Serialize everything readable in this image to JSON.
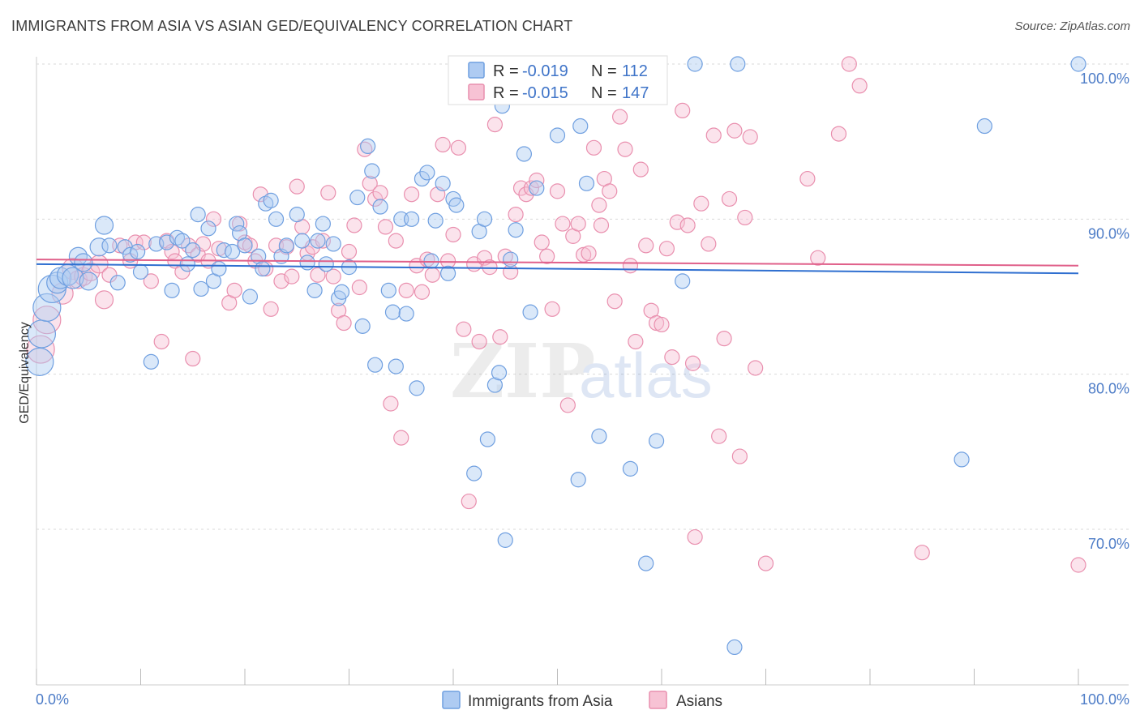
{
  "chart_data": {
    "type": "scatter",
    "title": "IMMIGRANTS FROM ASIA VS ASIAN GED/EQUIVALENCY CORRELATION CHART",
    "source": "Source: ZipAtlas.com",
    "xlabel": "",
    "ylabel": "GED/Equivalency",
    "xlim": [
      0,
      100
    ],
    "ylim": [
      60,
      101.5
    ],
    "x_tick_labels": [
      "0.0%",
      "100.0%"
    ],
    "y_ticks": [
      {
        "value": 100,
        "label": "100.0%"
      },
      {
        "value": 90,
        "label": "90.0%"
      },
      {
        "value": 80,
        "label": "80.0%"
      },
      {
        "value": 70,
        "label": "70.0%"
      }
    ],
    "grid": true,
    "legend_position": "top-center",
    "watermark": "ZIPatlas",
    "colors": {
      "blue_stroke": "#6f9fe0",
      "blue_fill": "#aecbf2",
      "blue_line": "#2f6fd0",
      "pink_stroke": "#e98fae",
      "pink_fill": "#f7c2d4",
      "pink_line": "#e0608a"
    },
    "stats": [
      {
        "r_label": "R =",
        "r_value": "-0.019",
        "n_label": "N =",
        "n_value": "112"
      },
      {
        "r_label": "R =",
        "r_value": "-0.015",
        "n_label": "N =",
        "n_value": "147"
      }
    ],
    "series": [
      {
        "name": "Immigrants from Asia",
        "trend": {
          "start": [
            0,
            87.1
          ],
          "end": [
            100,
            86.5
          ]
        },
        "points": [
          [
            0.3,
            80.8
          ],
          [
            0.5,
            82.6
          ],
          [
            1.0,
            84.3
          ],
          [
            1.5,
            85.5
          ],
          [
            2.0,
            85.9
          ],
          [
            2.3,
            86.2
          ],
          [
            3.0,
            86.4
          ],
          [
            3.5,
            86.2
          ],
          [
            4.0,
            87.6
          ],
          [
            4.5,
            87.2
          ],
          [
            5.0,
            86.0
          ],
          [
            6.0,
            88.2
          ],
          [
            6.5,
            89.6
          ],
          [
            7.0,
            88.3
          ],
          [
            7.8,
            85.9
          ],
          [
            8.5,
            88.2
          ],
          [
            9.0,
            87.7
          ],
          [
            9.7,
            87.9
          ],
          [
            10.0,
            86.6
          ],
          [
            11.0,
            80.8
          ],
          [
            11.5,
            88.4
          ],
          [
            12.5,
            88.5
          ],
          [
            13.0,
            85.4
          ],
          [
            13.5,
            88.8
          ],
          [
            14.0,
            88.6
          ],
          [
            14.5,
            87.1
          ],
          [
            15.0,
            88.0
          ],
          [
            15.5,
            90.3
          ],
          [
            15.8,
            85.5
          ],
          [
            16.5,
            89.4
          ],
          [
            17.0,
            86.0
          ],
          [
            17.5,
            86.8
          ],
          [
            18.0,
            88.0
          ],
          [
            18.8,
            87.9
          ],
          [
            19.2,
            89.7
          ],
          [
            19.5,
            89.1
          ],
          [
            20.0,
            88.3
          ],
          [
            20.5,
            85.0
          ],
          [
            21.3,
            87.6
          ],
          [
            21.7,
            86.8
          ],
          [
            22.0,
            91.0
          ],
          [
            22.5,
            91.2
          ],
          [
            23.0,
            90.0
          ],
          [
            23.5,
            87.6
          ],
          [
            24.0,
            88.3
          ],
          [
            25.0,
            90.3
          ],
          [
            25.5,
            88.6
          ],
          [
            26.0,
            87.2
          ],
          [
            26.7,
            85.4
          ],
          [
            27.0,
            88.6
          ],
          [
            27.5,
            89.7
          ],
          [
            27.8,
            87.1
          ],
          [
            28.5,
            88.4
          ],
          [
            29.0,
            84.9
          ],
          [
            29.3,
            85.3
          ],
          [
            30.0,
            86.9
          ],
          [
            30.8,
            91.4
          ],
          [
            31.3,
            83.1
          ],
          [
            31.8,
            94.7
          ],
          [
            32.2,
            93.1
          ],
          [
            32.5,
            80.6
          ],
          [
            33.0,
            90.8
          ],
          [
            33.8,
            85.4
          ],
          [
            34.2,
            84.0
          ],
          [
            34.5,
            80.5
          ],
          [
            35.0,
            90.0
          ],
          [
            35.5,
            83.9
          ],
          [
            36.0,
            90.0
          ],
          [
            36.5,
            79.1
          ],
          [
            37.0,
            92.6
          ],
          [
            37.5,
            93.0
          ],
          [
            37.9,
            87.3
          ],
          [
            38.3,
            89.9
          ],
          [
            39.0,
            92.3
          ],
          [
            39.5,
            86.5
          ],
          [
            40.0,
            91.3
          ],
          [
            40.3,
            90.9
          ],
          [
            42.0,
            73.6
          ],
          [
            42.5,
            89.2
          ],
          [
            43.0,
            90.0
          ],
          [
            43.3,
            75.8
          ],
          [
            44.0,
            79.3
          ],
          [
            44.4,
            80.1
          ],
          [
            44.7,
            97.3
          ],
          [
            45.0,
            69.3
          ],
          [
            45.5,
            87.4
          ],
          [
            46.0,
            89.3
          ],
          [
            46.8,
            94.2
          ],
          [
            47.4,
            84.0
          ],
          [
            48.0,
            92.0
          ],
          [
            50.0,
            95.4
          ],
          [
            52.0,
            73.2
          ],
          [
            52.2,
            96.0
          ],
          [
            52.8,
            92.3
          ],
          [
            53.5,
            98.8
          ],
          [
            54.0,
            76.0
          ],
          [
            57.0,
            73.9
          ],
          [
            58.5,
            67.8
          ],
          [
            59.5,
            75.7
          ],
          [
            62.0,
            86.0
          ],
          [
            63.2,
            100.0
          ],
          [
            67.0,
            62.4
          ],
          [
            67.3,
            100.0
          ],
          [
            88.8,
            74.5
          ],
          [
            91.0,
            96.0
          ],
          [
            100.0,
            100.0
          ]
        ]
      },
      {
        "name": "Asians",
        "trend": {
          "start": [
            0,
            87.4
          ],
          "end": [
            100,
            87.0
          ]
        },
        "points": [
          [
            0.4,
            81.6
          ],
          [
            1.0,
            83.5
          ],
          [
            2.5,
            85.2
          ],
          [
            3.5,
            86.8
          ],
          [
            4.0,
            86.1
          ],
          [
            4.5,
            86.3
          ],
          [
            5.2,
            86.6
          ],
          [
            6.0,
            87.1
          ],
          [
            6.5,
            84.8
          ],
          [
            7.0,
            86.4
          ],
          [
            8.0,
            88.3
          ],
          [
            9.0,
            87.3
          ],
          [
            9.5,
            88.5
          ],
          [
            10.3,
            88.5
          ],
          [
            11.0,
            86.0
          ],
          [
            12.0,
            82.1
          ],
          [
            12.5,
            88.6
          ],
          [
            13.0,
            87.9
          ],
          [
            13.3,
            87.3
          ],
          [
            14.0,
            86.6
          ],
          [
            14.6,
            88.3
          ],
          [
            15.0,
            81.0
          ],
          [
            15.5,
            87.7
          ],
          [
            16.0,
            88.4
          ],
          [
            16.5,
            87.3
          ],
          [
            17.0,
            90.0
          ],
          [
            17.5,
            88.1
          ],
          [
            18.5,
            84.6
          ],
          [
            19.0,
            85.4
          ],
          [
            19.5,
            89.7
          ],
          [
            20.0,
            88.5
          ],
          [
            20.5,
            88.3
          ],
          [
            21.0,
            87.3
          ],
          [
            21.5,
            91.6
          ],
          [
            22.0,
            86.8
          ],
          [
            22.5,
            84.2
          ],
          [
            23.0,
            88.3
          ],
          [
            23.5,
            86.0
          ],
          [
            24.0,
            88.2
          ],
          [
            24.5,
            86.3
          ],
          [
            25.0,
            92.1
          ],
          [
            25.5,
            89.5
          ],
          [
            26.0,
            87.8
          ],
          [
            26.5,
            88.2
          ],
          [
            27.0,
            86.4
          ],
          [
            27.5,
            88.6
          ],
          [
            28.0,
            91.7
          ],
          [
            28.5,
            86.3
          ],
          [
            29.0,
            84.1
          ],
          [
            29.5,
            83.3
          ],
          [
            30.0,
            87.9
          ],
          [
            30.5,
            89.6
          ],
          [
            31.0,
            85.6
          ],
          [
            31.5,
            94.5
          ],
          [
            32.0,
            92.3
          ],
          [
            32.5,
            91.3
          ],
          [
            33.0,
            91.7
          ],
          [
            33.5,
            89.5
          ],
          [
            34.0,
            78.1
          ],
          [
            34.5,
            88.6
          ],
          [
            35.0,
            75.9
          ],
          [
            35.5,
            85.4
          ],
          [
            36.0,
            91.6
          ],
          [
            36.5,
            87.0
          ],
          [
            37.0,
            85.3
          ],
          [
            37.5,
            87.4
          ],
          [
            38.0,
            86.4
          ],
          [
            38.5,
            91.6
          ],
          [
            39.0,
            94.8
          ],
          [
            39.5,
            87.3
          ],
          [
            40.0,
            89.0
          ],
          [
            40.5,
            94.6
          ],
          [
            41.0,
            82.9
          ],
          [
            41.5,
            71.8
          ],
          [
            42.0,
            87.1
          ],
          [
            42.5,
            82.1
          ],
          [
            43.0,
            87.5
          ],
          [
            43.5,
            86.9
          ],
          [
            44.0,
            96.1
          ],
          [
            44.5,
            82.4
          ],
          [
            45.0,
            87.6
          ],
          [
            45.5,
            86.6
          ],
          [
            46.0,
            90.3
          ],
          [
            46.5,
            92.0
          ],
          [
            47.0,
            91.6
          ],
          [
            47.5,
            92.0
          ],
          [
            48.0,
            92.5
          ],
          [
            48.5,
            88.5
          ],
          [
            49.0,
            87.6
          ],
          [
            49.5,
            84.2
          ],
          [
            50.0,
            91.8
          ],
          [
            50.5,
            89.7
          ],
          [
            51.0,
            78.0
          ],
          [
            51.5,
            88.9
          ],
          [
            52.0,
            89.7
          ],
          [
            52.5,
            87.7
          ],
          [
            53.0,
            87.8
          ],
          [
            53.5,
            94.6
          ],
          [
            54.0,
            90.9
          ],
          [
            54.2,
            89.6
          ],
          [
            54.5,
            92.6
          ],
          [
            55.0,
            91.8
          ],
          [
            55.5,
            84.7
          ],
          [
            56.0,
            96.6
          ],
          [
            56.5,
            94.5
          ],
          [
            57.0,
            87.0
          ],
          [
            57.5,
            82.1
          ],
          [
            58.0,
            93.2
          ],
          [
            58.5,
            88.3
          ],
          [
            59.0,
            84.1
          ],
          [
            59.5,
            83.3
          ],
          [
            60.0,
            83.2
          ],
          [
            60.5,
            88.1
          ],
          [
            61.0,
            81.1
          ],
          [
            61.5,
            89.8
          ],
          [
            62.0,
            97.0
          ],
          [
            62.5,
            89.6
          ],
          [
            63.0,
            80.7
          ],
          [
            63.2,
            69.5
          ],
          [
            63.8,
            91.0
          ],
          [
            64.5,
            88.4
          ],
          [
            65.0,
            95.4
          ],
          [
            65.5,
            76.0
          ],
          [
            66.0,
            82.3
          ],
          [
            66.5,
            91.3
          ],
          [
            67.0,
            95.7
          ],
          [
            67.5,
            74.7
          ],
          [
            68.0,
            90.1
          ],
          [
            68.5,
            95.3
          ],
          [
            69.0,
            80.4
          ],
          [
            70.0,
            67.8
          ],
          [
            74.0,
            92.6
          ],
          [
            75.0,
            87.5
          ],
          [
            77.0,
            95.5
          ],
          [
            78.0,
            100.0
          ],
          [
            79.0,
            98.6
          ],
          [
            85.0,
            68.5
          ],
          [
            100.0,
            67.7
          ]
        ]
      }
    ]
  }
}
